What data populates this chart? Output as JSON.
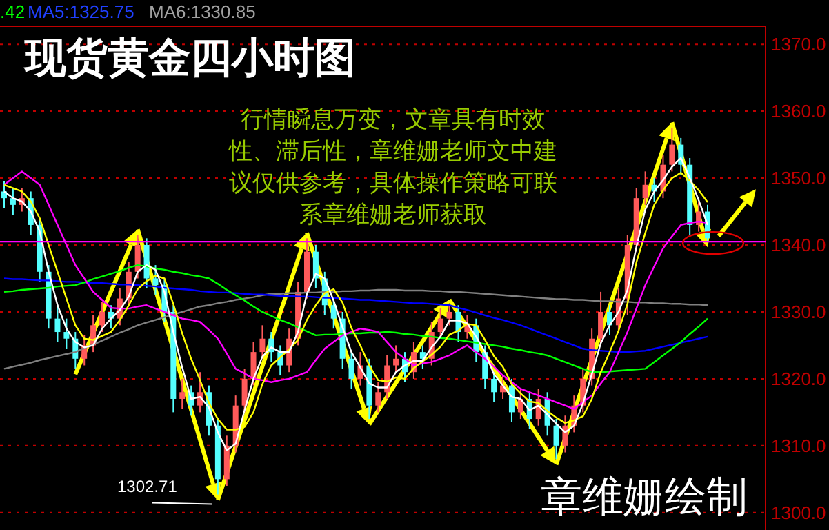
{
  "chart_data": {
    "type": "candlestick",
    "title": "现货黄金四小时图",
    "categories": [
      null,
      null,
      null,
      null,
      null,
      null,
      null,
      null,
      null,
      null,
      null,
      null,
      null,
      null,
      null,
      null,
      null,
      null,
      null,
      null,
      null,
      null,
      null,
      null,
      null,
      null,
      null,
      null,
      null,
      null,
      null,
      null,
      null,
      null,
      null,
      null,
      null,
      null,
      null,
      null,
      null,
      null,
      null,
      null,
      null,
      null,
      null,
      null,
      null,
      null,
      null,
      null,
      null,
      null,
      null,
      null,
      null,
      null,
      null,
      null,
      null,
      null,
      null,
      null,
      null,
      null,
      null,
      null,
      null,
      null,
      null,
      null,
      null,
      null,
      null,
      null,
      null,
      null,
      null,
      null
    ],
    "ohlc": [
      [
        1348,
        1349.5,
        1345.5,
        1347
      ],
      [
        1347,
        1348.5,
        1344.5,
        1346
      ],
      [
        1346,
        1348.5,
        1345,
        1347
      ],
      [
        1347,
        1348,
        1341.5,
        1343
      ],
      [
        1343,
        1344,
        1334.5,
        1336
      ],
      [
        1336,
        1337,
        1327.5,
        1329
      ],
      [
        1329,
        1331,
        1325.5,
        1327
      ],
      [
        1327,
        1329,
        1324.5,
        1326
      ],
      [
        1326,
        1327,
        1321.5,
        1323
      ],
      [
        1323,
        1326.5,
        1322,
        1325
      ],
      [
        1325,
        1329.5,
        1324,
        1328
      ],
      [
        1328,
        1331.5,
        1327,
        1330
      ],
      [
        1330,
        1331,
        1327.5,
        1329
      ],
      [
        1329,
        1333.5,
        1328,
        1332
      ],
      [
        1332,
        1337.5,
        1331,
        1336
      ],
      [
        1336,
        1341.5,
        1335,
        1340
      ],
      [
        1340,
        1341,
        1333.5,
        1335
      ],
      [
        1335,
        1337,
        1332.5,
        1334
      ],
      [
        1334,
        1335,
        1328.5,
        1330
      ],
      [
        1330,
        1331,
        1315,
        1317
      ],
      [
        1317,
        1320,
        1315.5,
        1318
      ],
      [
        1318,
        1319,
        1314.5,
        1316
      ],
      [
        1316,
        1321,
        1315,
        1318
      ],
      [
        1318,
        1319,
        1311.5,
        1313
      ],
      [
        1313,
        1314,
        1302.71,
        1305
      ],
      [
        1305,
        1311.5,
        1304,
        1310
      ],
      [
        1310,
        1317.5,
        1309,
        1316
      ],
      [
        1316,
        1321.5,
        1315,
        1320
      ],
      [
        1320,
        1325.5,
        1319,
        1324
      ],
      [
        1324,
        1328,
        1323,
        1326
      ],
      [
        1326,
        1327,
        1322.5,
        1324
      ],
      [
        1324,
        1325,
        1320.5,
        1322
      ],
      [
        1322,
        1327.5,
        1321,
        1326
      ],
      [
        1326,
        1334.5,
        1325,
        1333
      ],
      [
        1333,
        1341,
        1332,
        1339
      ],
      [
        1339,
        1340,
        1333.5,
        1335
      ],
      [
        1335,
        1336,
        1329.5,
        1331
      ],
      [
        1331,
        1332,
        1327.5,
        1329
      ],
      [
        1329,
        1330,
        1321.5,
        1323
      ],
      [
        1323,
        1324,
        1318.5,
        1320
      ],
      [
        1320,
        1324,
        1319,
        1322
      ],
      [
        1322,
        1323,
        1314,
        1316
      ],
      [
        1316,
        1319.5,
        1315,
        1318
      ],
      [
        1318,
        1323.5,
        1317,
        1322
      ],
      [
        1322,
        1325,
        1321,
        1323
      ],
      [
        1323,
        1324,
        1319.5,
        1321
      ],
      [
        1321,
        1325.5,
        1320,
        1324
      ],
      [
        1324,
        1325,
        1321.5,
        1323
      ],
      [
        1323,
        1328.5,
        1322,
        1327
      ],
      [
        1327,
        1330.5,
        1326,
        1329
      ],
      [
        1329,
        1331,
        1328,
        1330
      ],
      [
        1330,
        1331,
        1325.5,
        1327
      ],
      [
        1327,
        1329.5,
        1326,
        1328
      ],
      [
        1328,
        1329,
        1322.5,
        1324
      ],
      [
        1324,
        1325,
        1318.5,
        1320
      ],
      [
        1320,
        1321,
        1316.5,
        1318
      ],
      [
        1318,
        1320.5,
        1317,
        1319
      ],
      [
        1319,
        1320,
        1313.5,
        1315
      ],
      [
        1315,
        1318.5,
        1314,
        1317
      ],
      [
        1317,
        1318,
        1312.5,
        1314
      ],
      [
        1314,
        1318.5,
        1313,
        1317
      ],
      [
        1317,
        1318,
        1311.5,
        1313
      ],
      [
        1313,
        1314,
        1308,
        1310
      ],
      [
        1310,
        1314.5,
        1309,
        1313
      ],
      [
        1313,
        1317.5,
        1312,
        1316
      ],
      [
        1316,
        1321.5,
        1315,
        1320
      ],
      [
        1320,
        1327.5,
        1319,
        1326
      ],
      [
        1326,
        1333,
        1325,
        1330
      ],
      [
        1330,
        1331,
        1326.5,
        1328
      ],
      [
        1328,
        1333.5,
        1327,
        1332
      ],
      [
        1332,
        1341.5,
        1329.5,
        1340
      ],
      [
        1340,
        1348.5,
        1339,
        1347
      ],
      [
        1347,
        1351,
        1346,
        1349
      ],
      [
        1349,
        1350,
        1346.5,
        1348
      ],
      [
        1348,
        1353.5,
        1347,
        1352
      ],
      [
        1352,
        1357.5,
        1351,
        1355
      ],
      [
        1355,
        1356,
        1350.5,
        1352
      ],
      [
        1352,
        1353,
        1341.5,
        1343
      ],
      [
        1343,
        1346.5,
        1342,
        1345
      ],
      [
        1345,
        1346,
        1340.5,
        1341
      ]
    ],
    "series": [
      {
        "type": "line",
        "color": "#ffffff",
        "values": [
          1348,
          1347,
          1346.5,
          1345,
          1342,
          1336,
          1331,
          1327.5,
          1325.5,
          1324.7,
          1325,
          1327.5,
          1329,
          1330.3,
          1332.3,
          1336,
          1337,
          1336.3,
          1333,
          1327,
          1321.7,
          1317,
          1317.3,
          1315.7,
          1312,
          1309.3,
          1310.3,
          1315.3,
          1320,
          1323.3,
          1324.7,
          1324,
          1324,
          1327,
          1332.7,
          1335.7,
          1335,
          1331.7,
          1327.7,
          1324,
          1321.7,
          1319.3,
          1318.7,
          1318.7,
          1321,
          1322,
          1322.7,
          1322.7,
          1324.7,
          1326.3,
          1328.7,
          1328.7,
          1328.3,
          1326.3,
          1324,
          1320.7,
          1319,
          1317.3,
          1317,
          1315.3,
          1316,
          1314.7,
          1313.3,
          1312,
          1313,
          1316.3,
          1320.7,
          1325.3,
          1328,
          1330,
          1333.3,
          1339.7,
          1345.3,
          1348,
          1349.7,
          1351.7,
          1353,
          1350,
          1346.7,
          1343
        ]
      },
      {
        "type": "line",
        "color": "#ffff00",
        "values": [
          1349,
          1348.5,
          1348,
          1346.5,
          1344,
          1340,
          1336,
          1332,
          1328,
          1326,
          1325.8,
          1326.4,
          1327,
          1328.8,
          1331,
          1333.4,
          1334.6,
          1335.4,
          1335,
          1331.2,
          1326.8,
          1323,
          1319.8,
          1316.4,
          1314,
          1312.4,
          1312.4,
          1312.8,
          1315,
          1319.2,
          1322,
          1323.2,
          1324.4,
          1325.8,
          1328.8,
          1331,
          1332.8,
          1333.4,
          1331.4,
          1327.6,
          1325,
          1322,
          1319.8,
          1319.6,
          1320.2,
          1320,
          1321.6,
          1322.6,
          1323.6,
          1324.8,
          1326.6,
          1327.2,
          1328.2,
          1328,
          1325.8,
          1323.4,
          1321.8,
          1319.2,
          1317.8,
          1316.6,
          1316.4,
          1315.2,
          1314.2,
          1313.4,
          1313.8,
          1314.4,
          1317,
          1321,
          1324,
          1327.2,
          1331.2,
          1337.4,
          1341.8,
          1346,
          1348.2,
          1350,
          1350.8,
          1349.6,
          1348.2,
          1346.4
        ]
      },
      {
        "type": "line",
        "color": "#ff00ff",
        "values": [
          1349,
          1350,
          1351,
          1350,
          1349,
          1346,
          1343,
          1340,
          1337,
          1335,
          1333,
          1331.8,
          1330.6,
          1330.5,
          1330.5,
          1330.8,
          1331,
          1330.5,
          1330,
          1329.5,
          1329,
          1328.8,
          1328.5,
          1327.3,
          1326,
          1323.8,
          1321.5,
          1320.8,
          1320,
          1319.8,
          1319.5,
          1319.8,
          1320,
          1320.5,
          1321,
          1322.8,
          1324.5,
          1325.5,
          1326.5,
          1327,
          1327.5,
          1327.3,
          1327,
          1325.5,
          1324,
          1323,
          1322,
          1322.3,
          1322.5,
          1323,
          1323.5,
          1324.3,
          1325,
          1324,
          1323,
          1321.8,
          1320.5,
          1319.5,
          1318.5,
          1318,
          1317.5,
          1317,
          1316.5,
          1316,
          1315.5,
          1316.5,
          1317.5,
          1319.3,
          1321,
          1324,
          1327,
          1330.5,
          1334,
          1336.8,
          1339.5,
          1341.3,
          1343,
          1343.3,
          1343.5,
          1343.3
        ]
      },
      {
        "type": "line",
        "color": "#00ff00",
        "values": [
          1333,
          1333.1,
          1333.3,
          1333.4,
          1333.5,
          1333.6,
          1333.8,
          1333.9,
          1334,
          1334.4,
          1334.9,
          1335.3,
          1335.7,
          1336.1,
          1336.6,
          1337,
          1336.8,
          1336.5,
          1336.3,
          1336,
          1335.8,
          1335.5,
          1335.3,
          1335,
          1334.2,
          1333.3,
          1332.5,
          1331.7,
          1330.8,
          1330,
          1329.4,
          1328.8,
          1328.3,
          1327.7,
          1327.1,
          1326.5,
          1326.6,
          1326.6,
          1326.7,
          1326.8,
          1326.8,
          1326.9,
          1326.9,
          1327,
          1326.9,
          1326.7,
          1326.6,
          1326.4,
          1326.3,
          1326.1,
          1326,
          1325.8,
          1325.6,
          1325.4,
          1325.2,
          1325,
          1324.8,
          1324.5,
          1324.3,
          1324,
          1323.8,
          1323.5,
          1323,
          1322.5,
          1322,
          1321.5,
          1321,
          1321,
          1321.1,
          1321.2,
          1321.3,
          1321.4,
          1321.5,
          1322.5,
          1323.5,
          1324.5,
          1325.5,
          1326.7,
          1327.8,
          1329
        ]
      },
      {
        "type": "line",
        "color": "#0000ff",
        "values": [
          1335,
          1334.9,
          1334.9,
          1334.8,
          1334.7,
          1334.7,
          1334.6,
          1334.5,
          1334.5,
          1334.4,
          1334.3,
          1334.3,
          1334.2,
          1334.1,
          1334.1,
          1334,
          1333.9,
          1333.8,
          1333.6,
          1333.5,
          1333.4,
          1333.3,
          1333.1,
          1333,
          1332.9,
          1332.9,
          1332.8,
          1332.7,
          1332.6,
          1332.6,
          1332.5,
          1332.4,
          1332.4,
          1332.3,
          1332.3,
          1332.2,
          1332.1,
          1332.1,
          1332,
          1331.9,
          1331.8,
          1331.8,
          1331.7,
          1331.6,
          1331.5,
          1331.4,
          1331.3,
          1331.3,
          1331.2,
          1331.1,
          1331,
          1330.6,
          1330.3,
          1329.9,
          1329.5,
          1329.1,
          1328.8,
          1328.4,
          1328,
          1327.5,
          1327,
          1326.5,
          1326,
          1325.5,
          1325,
          1324.5,
          1324.3,
          1324.2,
          1324.1,
          1324,
          1324,
          1324.1,
          1324.2,
          1324.5,
          1324.8,
          1325.1,
          1325.4,
          1325.7,
          1326,
          1326.3
        ]
      },
      {
        "type": "line",
        "color": "#808080",
        "values": [
          1321.5,
          1321.8,
          1322.1,
          1322.4,
          1322.8,
          1323.1,
          1323.4,
          1323.7,
          1324,
          1324.6,
          1325.1,
          1325.7,
          1326.3,
          1326.9,
          1327.4,
          1328,
          1328.4,
          1328.8,
          1329.2,
          1329.6,
          1330,
          1330.4,
          1330.8,
          1331,
          1331.3,
          1331.5,
          1331.8,
          1332,
          1332.2,
          1332.5,
          1332.7,
          1332.7,
          1332.8,
          1332.8,
          1332.9,
          1332.9,
          1333,
          1333,
          1333.1,
          1333.1,
          1333.2,
          1333.2,
          1333.3,
          1333.3,
          1333.3,
          1333.2,
          1333.2,
          1333.2,
          1333.1,
          1333.1,
          1333,
          1333,
          1332.9,
          1332.8,
          1332.7,
          1332.6,
          1332.5,
          1332.4,
          1332.3,
          1332.2,
          1332.1,
          1332,
          1331.9,
          1331.9,
          1331.8,
          1331.8,
          1331.7,
          1331.6,
          1331.6,
          1331.5,
          1331.5,
          1331.4,
          1331.4,
          1331.3,
          1331.3,
          1331.2,
          1331.2,
          1331.1,
          1331.1,
          1331
        ]
      }
    ],
    "ylim": [
      1297.4,
      1372.7
    ],
    "yticks": [
      {
        "value": 1300,
        "label": "1300.0"
      },
      {
        "value": 1310,
        "label": "1310.0"
      },
      {
        "value": 1320,
        "label": "1320.0"
      },
      {
        "value": 1330,
        "label": "1330.0"
      },
      {
        "value": 1340,
        "label": "1340.0"
      },
      {
        "value": 1350,
        "label": "1350.0"
      },
      {
        "value": 1360,
        "label": "1360.0"
      },
      {
        "value": 1370,
        "label": "1370.0"
      }
    ],
    "grid": "y",
    "tick_labels": "y",
    "ref_lines": [
      {
        "axis": "y",
        "value": 1340.5,
        "color": "#ff00ff"
      }
    ],
    "annotations": [
      ".42",
      "MA5:1325.75",
      "MA6:1330.85",
      "行情瞬息万变，文章具有时效",
      "性、滞后性，章维姗老师文中建",
      "议仅供参考，具体操作策略可联",
      "系章维姗老师获取",
      "章维姗绘制",
      "1302.71"
    ]
  }
}
